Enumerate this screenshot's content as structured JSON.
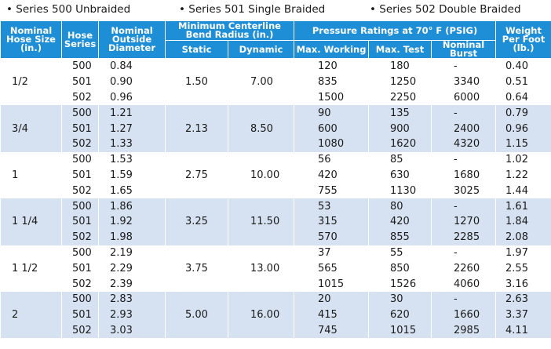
{
  "legend": {
    "items": [
      "• Series 500 Unbraided",
      "• Series 501 Single Braided",
      "• Series 502 Double Braided"
    ]
  },
  "header": {
    "size": "Nominal Hose Size (in.)",
    "series": "Hose Series",
    "od": "Nominal Outside Diameter",
    "bend": "Minimum Centerline Bend Radius (in.)",
    "static": "Static",
    "dynamic": "Dynamic",
    "pressure": "Pressure Ratings at 70° F (PSIG)",
    "work": "Max. Working",
    "test": "Max. Test",
    "burst": "Nominal Burst",
    "weight": "Weight Per Foot (lb.)"
  },
  "groups": [
    {
      "size": "1/2",
      "static": "1.50",
      "dynamic": "7.00",
      "rows": [
        {
          "series": "500",
          "od": "0.84",
          "work": "120",
          "test": "180",
          "burst": "-",
          "weight": "0.40"
        },
        {
          "series": "501",
          "od": "0.90",
          "work": "835",
          "test": "1250",
          "burst": "3340",
          "weight": "0.51"
        },
        {
          "series": "502",
          "od": "0.96",
          "work": "1500",
          "test": "2250",
          "burst": "6000",
          "weight": "0.64"
        }
      ]
    },
    {
      "size": "3/4",
      "static": "2.13",
      "dynamic": "8.50",
      "rows": [
        {
          "series": "500",
          "od": "1.21",
          "work": "90",
          "test": "135",
          "burst": "-",
          "weight": "0.79"
        },
        {
          "series": "501",
          "od": "1.27",
          "work": "600",
          "test": "900",
          "burst": "2400",
          "weight": "0.96"
        },
        {
          "series": "502",
          "od": "1.33",
          "work": "1080",
          "test": "1620",
          "burst": "4320",
          "weight": "1.15"
        }
      ]
    },
    {
      "size": "1",
      "static": "2.75",
      "dynamic": "10.00",
      "rows": [
        {
          "series": "500",
          "od": "1.53",
          "work": "56",
          "test": "85",
          "burst": "-",
          "weight": "1.02"
        },
        {
          "series": "501",
          "od": "1.59",
          "work": "420",
          "test": "630",
          "burst": "1680",
          "weight": "1.22"
        },
        {
          "series": "502",
          "od": "1.65",
          "work": "755",
          "test": "1130",
          "burst": "3025",
          "weight": "1.44"
        }
      ]
    },
    {
      "size": "1 1/4",
      "static": "3.25",
      "dynamic": "11.50",
      "rows": [
        {
          "series": "500",
          "od": "1.86",
          "work": "53",
          "test": "80",
          "burst": "-",
          "weight": "1.61"
        },
        {
          "series": "501",
          "od": "1.92",
          "work": "315",
          "test": "420",
          "burst": "1270",
          "weight": "1.84"
        },
        {
          "series": "502",
          "od": "1.98",
          "work": "570",
          "test": "855",
          "burst": "2285",
          "weight": "2.08"
        }
      ]
    },
    {
      "size": "1 1/2",
      "static": "3.75",
      "dynamic": "13.00",
      "rows": [
        {
          "series": "500",
          "od": "2.19",
          "work": "37",
          "test": "55",
          "burst": "-",
          "weight": "1.97"
        },
        {
          "series": "501",
          "od": "2.29",
          "work": "565",
          "test": "850",
          "burst": "2260",
          "weight": "2.55"
        },
        {
          "series": "502",
          "od": "2.39",
          "work": "1015",
          "test": "1526",
          "burst": "4060",
          "weight": "3.16"
        }
      ]
    },
    {
      "size": "2",
      "static": "5.00",
      "dynamic": "16.00",
      "rows": [
        {
          "series": "500",
          "od": "2.83",
          "work": "20",
          "test": "30",
          "burst": "-",
          "weight": "2.63"
        },
        {
          "series": "501",
          "od": "2.93",
          "work": "415",
          "test": "620",
          "burst": "1660",
          "weight": "3.37"
        },
        {
          "series": "502",
          "od": "3.03",
          "work": "745",
          "test": "1015",
          "burst": "2985",
          "weight": "4.11"
        }
      ]
    }
  ]
}
